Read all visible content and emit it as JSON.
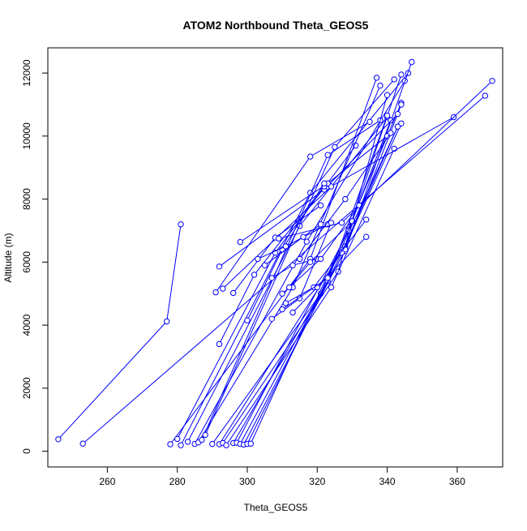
{
  "chart_data": {
    "type": "scatter",
    "title": "ATOM2 Northbound Theta_GEOS5",
    "xlabel": "Theta_GEOS5",
    "ylabel": "Altitude (m)",
    "xlim": [
      243,
      373
    ],
    "ylim": [
      -500,
      12800
    ],
    "xticks": [
      260,
      280,
      300,
      320,
      340,
      360
    ],
    "yticks": [
      0,
      2000,
      4000,
      6000,
      8000,
      10000,
      12000
    ],
    "grid": false,
    "legend": "none",
    "marker": "open-circle",
    "connected": true,
    "color": "#0000ff",
    "series": [
      {
        "x": [
          246,
          277,
          281
        ],
        "y": [
          380,
          4120,
          7200
        ]
      },
      {
        "x": [
          253,
          368
        ],
        "y": [
          240,
          11280
        ]
      },
      {
        "x": [
          278,
          318,
          337
        ],
        "y": [
          220,
          6100,
          11850
        ]
      },
      {
        "x": [
          280,
          308,
          331
        ],
        "y": [
          390,
          6300,
          9700
        ]
      },
      {
        "x": [
          281,
          318,
          346
        ],
        "y": [
          190,
          8200,
          12000
        ]
      },
      {
        "x": [
          283,
          315,
          340
        ],
        "y": [
          300,
          7150,
          10600
        ]
      },
      {
        "x": [
          285,
          317,
          345
        ],
        "y": [
          230,
          6650,
          11750
        ]
      },
      {
        "x": [
          286,
          313,
          338
        ],
        "y": [
          280,
          5200,
          11600
        ]
      },
      {
        "x": [
          287,
          323,
          338
        ],
        "y": [
          360,
          9400,
          10500
        ]
      },
      {
        "x": [
          288,
          325,
          342
        ],
        "y": [
          520,
          9650,
          11800
        ]
      },
      {
        "x": [
          290,
          321,
          344
        ],
        "y": [
          230,
          5000,
          11050
        ]
      },
      {
        "x": [
          292,
          328,
          344
        ],
        "y": [
          220,
          6500,
          10400
        ]
      },
      {
        "x": [
          293,
          326,
          340
        ],
        "y": [
          260,
          5700,
          11300
        ]
      },
      {
        "x": [
          294,
          324,
          342
        ],
        "y": [
          190,
          5200,
          9600
        ]
      },
      {
        "x": [
          296,
          328,
          347
        ],
        "y": [
          260,
          6350,
          12350
        ]
      },
      {
        "x": [
          297,
          329,
          344
        ],
        "y": [
          270,
          7000,
          11950
        ]
      },
      {
        "x": [
          298,
          323,
          340
        ],
        "y": [
          230,
          5400,
          10650
        ]
      },
      {
        "x": [
          299,
          328,
          344
        ],
        "y": [
          210,
          6400,
          11000
        ]
      },
      {
        "x": [
          300,
          327,
          343
        ],
        "y": [
          230,
          6300,
          10300
        ]
      },
      {
        "x": [
          301,
          330,
          341
        ],
        "y": [
          240,
          7300,
          10500
        ]
      },
      {
        "x": [
          291,
          318,
          335
        ],
        "y": [
          5040,
          9350,
          10450
        ]
      },
      {
        "x": [
          292,
          322,
          343
        ],
        "y": [
          5860,
          8300,
          10700
        ]
      },
      {
        "x": [
          293,
          324,
          359
        ],
        "y": [
          5160,
          8400,
          10600
        ]
      },
      {
        "x": [
          298,
          323,
          340
        ],
        "y": [
          6640,
          8500,
          10000
        ]
      },
      {
        "x": [
          296,
          308,
          321
        ],
        "y": [
          5020,
          6780,
          7800
        ]
      },
      {
        "x": [
          292,
          302,
          322
        ],
        "y": [
          3400,
          5600,
          8400
        ]
      },
      {
        "x": [
          300,
          310,
          322
        ],
        "y": [
          4150,
          6400,
          8500
        ]
      },
      {
        "x": [
          303,
          311,
          323
        ],
        "y": [
          6100,
          6500,
          7200
        ]
      },
      {
        "x": [
          305,
          316,
          321
        ],
        "y": [
          5900,
          6800,
          7200
        ]
      },
      {
        "x": [
          307,
          313,
          320
        ],
        "y": [
          5500,
          5900,
          6100
        ]
      },
      {
        "x": [
          309,
          327,
          370
        ],
        "y": [
          6750,
          7250,
          11750
        ]
      },
      {
        "x": [
          307,
          315,
          324
        ],
        "y": [
          4200,
          4850,
          7250
        ]
      },
      {
        "x": [
          311,
          319,
          334
        ],
        "y": [
          4700,
          5200,
          7350
        ]
      },
      {
        "x": [
          310,
          321,
          332
        ],
        "y": [
          5000,
          6100,
          7800
        ]
      },
      {
        "x": [
          312,
          318,
          330
        ],
        "y": [
          5200,
          6000,
          7300
        ]
      },
      {
        "x": [
          315,
          328,
          341
        ],
        "y": [
          6100,
          8000,
          10100
        ]
      },
      {
        "x": [
          313,
          320,
          334
        ],
        "y": [
          4400,
          5200,
          6800
        ]
      },
      {
        "x": [
          310,
          323,
          343
        ],
        "y": [
          4500,
          5500,
          10300
        ]
      }
    ]
  }
}
